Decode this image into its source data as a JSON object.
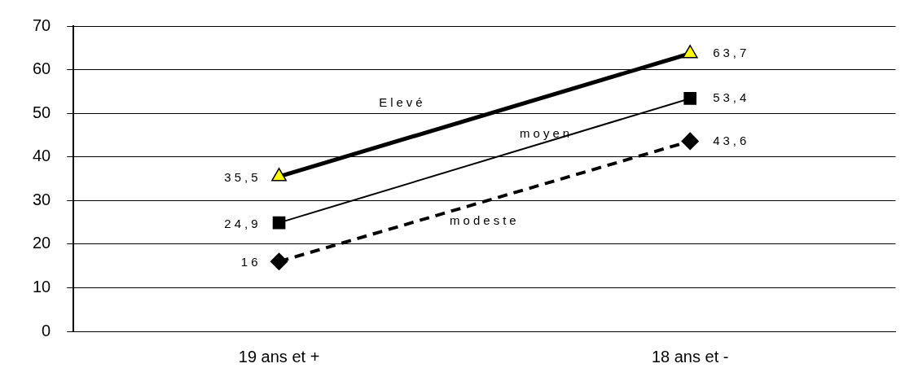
{
  "chart_data": {
    "type": "line",
    "categories": [
      "19 ans et +",
      "18 ans et -"
    ],
    "series": [
      {
        "name": "Elevé",
        "color": "#000000",
        "values": [
          35.5,
          63.7
        ],
        "value_labels": [
          "35,5",
          "63,7"
        ],
        "marker": "triangle",
        "line_style": "solid"
      },
      {
        "name": "moyen",
        "color": "#000000",
        "values": [
          24.9,
          53.4
        ],
        "value_labels": [
          "24,9",
          "53,4"
        ],
        "marker": "square",
        "line_style": "solid"
      },
      {
        "name": "modeste",
        "color": "#000000",
        "values": [
          16,
          43.6
        ],
        "value_labels": [
          "16",
          "43,6"
        ],
        "marker": "diamond",
        "line_style": "dashed"
      }
    ],
    "ylim": [
      0,
      70
    ],
    "yticks": [
      0,
      10,
      20,
      30,
      40,
      50,
      60,
      70
    ],
    "grid": "y",
    "legend": false
  }
}
